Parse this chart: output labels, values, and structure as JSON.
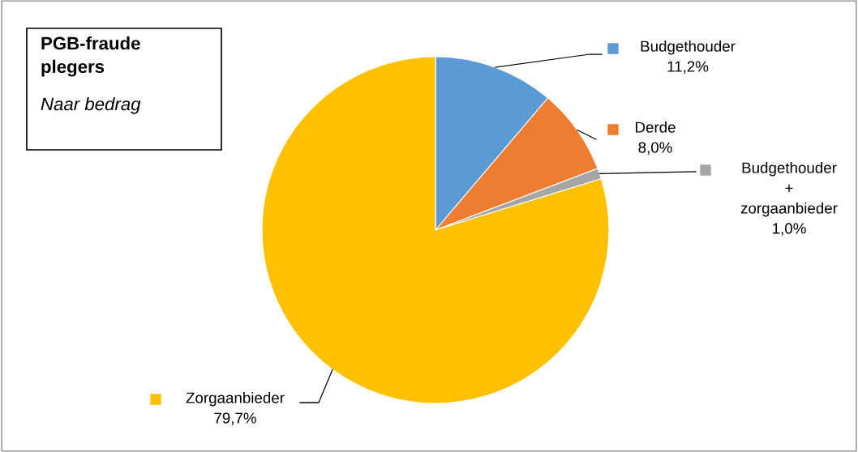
{
  "chart_data": {
    "type": "pie",
    "title": "PGB-fraude\nplegers",
    "subtitle": "Naar bedrag",
    "categories": [
      "Budgethouder",
      "Derde",
      "Budgethouder\n+\nzorgaanbieder",
      "Zorgaanbieder"
    ],
    "values": [
      11.2,
      8.0,
      1.0,
      79.7
    ],
    "colors": [
      "#5b9bd5",
      "#ed7d31",
      "#a5a5a5",
      "#ffc000"
    ],
    "value_labels": [
      "11,2%",
      "8,0%",
      "1,0%",
      "79,7%"
    ],
    "legend": "right"
  }
}
